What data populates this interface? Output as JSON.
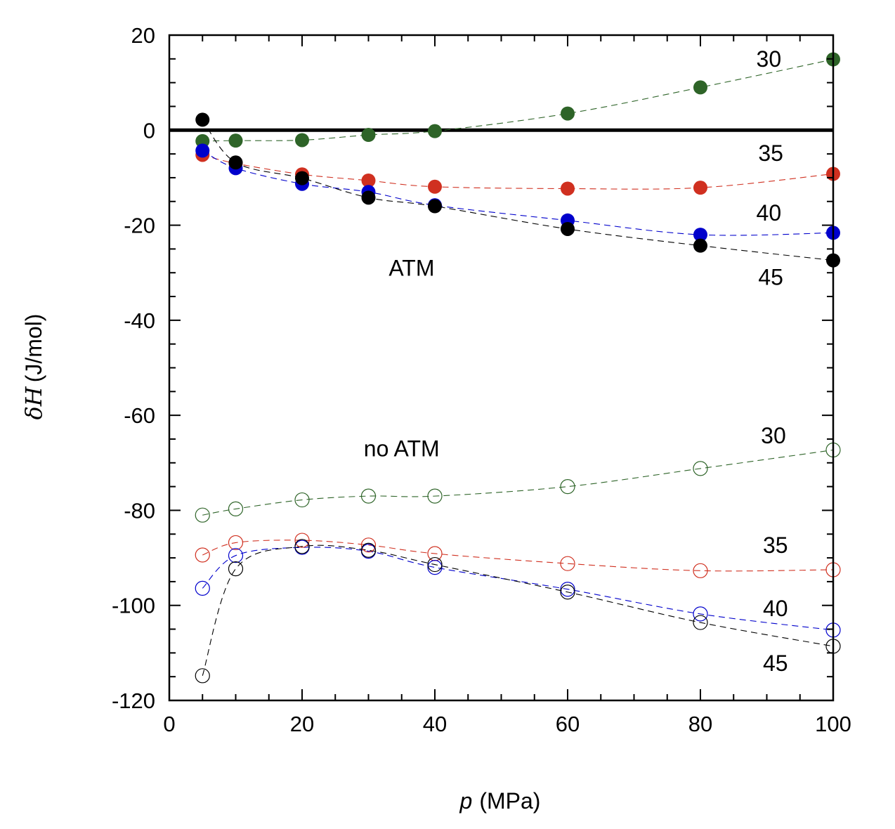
{
  "chart_data": {
    "type": "scatter",
    "title": "",
    "xlabel": "p (MPa)",
    "xlabel_var": "p",
    "xlabel_unit": "(MPa)",
    "ylabel": "δH (J/mol)",
    "ylabel_prefix": "δ",
    "ylabel_var": "H",
    "ylabel_unit": "(J/mol)",
    "xlim": [
      0,
      100
    ],
    "ylim": [
      -120,
      20
    ],
    "xticks": [
      0,
      20,
      40,
      60,
      80,
      100
    ],
    "xtick_labels": [
      "0",
      "20",
      "40",
      "60",
      "80",
      "100"
    ],
    "xminor_step": 5,
    "yticks": [
      20,
      0,
      -20,
      -40,
      -60,
      -80,
      -100,
      -120
    ],
    "ytick_labels": [
      "20",
      "0",
      "-20",
      "-40",
      "-60",
      "-80",
      "-100",
      "-120"
    ],
    "yminor_step": 5,
    "zero_line": true,
    "grid": false,
    "legend": "none",
    "x": [
      5,
      10,
      20,
      30,
      40,
      60,
      80,
      100
    ],
    "series": [
      {
        "name": "ATM 30",
        "group": "ATM",
        "label": "30",
        "color": "#2e6428",
        "marker": "filled-circle",
        "values": [
          -2.3,
          -2.2,
          -2.1,
          -1.0,
          -0.2,
          3.5,
          9.0,
          14.9
        ]
      },
      {
        "name": "ATM 35",
        "group": "ATM",
        "label": "35",
        "color": "#d03020",
        "marker": "filled-circle",
        "values": [
          -5.2,
          -7.0,
          -9.3,
          -10.6,
          -11.9,
          -12.3,
          -12.1,
          -9.2
        ]
      },
      {
        "name": "ATM 40",
        "group": "ATM",
        "label": "40",
        "color": "#0000cc",
        "marker": "filled-circle",
        "values": [
          -4.3,
          -8.0,
          -11.3,
          -13.0,
          -15.8,
          -19.0,
          -22.0,
          -21.6
        ]
      },
      {
        "name": "ATM 45",
        "group": "ATM",
        "label": "45",
        "color": "#000000",
        "marker": "filled-circle",
        "values": [
          2.2,
          -6.8,
          -10.1,
          -14.2,
          -16.0,
          -20.8,
          -24.3,
          -27.4
        ]
      },
      {
        "name": "no ATM 30",
        "group": "no ATM",
        "label": "30",
        "color": "#2e6428",
        "marker": "open-circle",
        "values": [
          -81.0,
          -79.7,
          -77.8,
          -77.0,
          -77.0,
          -75.0,
          -71.2,
          -67.3
        ]
      },
      {
        "name": "no ATM 35",
        "group": "no ATM",
        "label": "35",
        "color": "#d03020",
        "marker": "open-circle",
        "values": [
          -89.4,
          -86.8,
          -86.3,
          -87.3,
          -89.1,
          -91.2,
          -92.7,
          -92.5
        ]
      },
      {
        "name": "no ATM 40",
        "group": "no ATM",
        "label": "40",
        "color": "#0000cc",
        "marker": "open-circle",
        "values": [
          -96.4,
          -89.5,
          -87.8,
          -88.6,
          -92.0,
          -96.6,
          -101.8,
          -105.2
        ]
      },
      {
        "name": "no ATM 45",
        "group": "no ATM",
        "label": "45",
        "color": "#000000",
        "marker": "open-circle",
        "values": [
          -114.8,
          -92.3,
          -87.6,
          -88.4,
          -91.4,
          -97.2,
          -103.6,
          -108.6
        ]
      }
    ],
    "annotations": [
      {
        "text": "ATM",
        "x": 36.5,
        "y": -29.0
      },
      {
        "text": "no ATM",
        "x": 35.0,
        "y": -67.0
      },
      {
        "text": "30",
        "x": 90.3,
        "y": 15.0
      },
      {
        "text": "35",
        "x": 90.6,
        "y": -4.8
      },
      {
        "text": "40",
        "x": 90.3,
        "y": -17.4
      },
      {
        "text": "45",
        "x": 90.6,
        "y": -30.9
      },
      {
        "text": "30",
        "x": 91.0,
        "y": -64.3
      },
      {
        "text": "35",
        "x": 91.3,
        "y": -87.3
      },
      {
        "text": "40",
        "x": 91.3,
        "y": -100.6
      },
      {
        "text": "45",
        "x": 91.3,
        "y": -112.2
      }
    ]
  }
}
